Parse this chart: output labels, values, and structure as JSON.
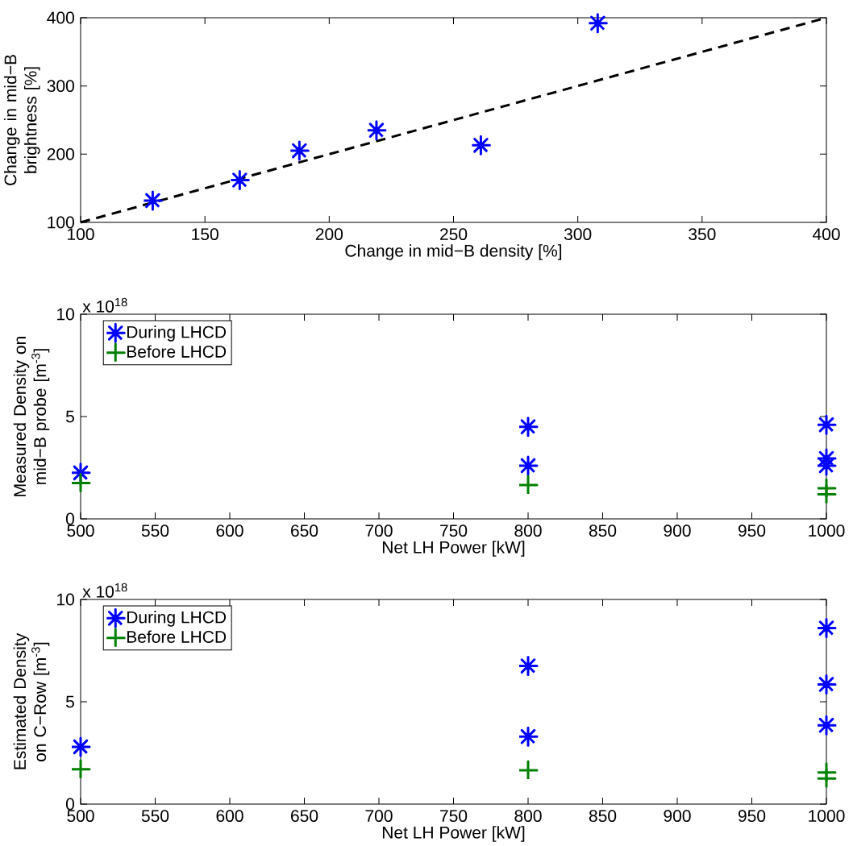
{
  "chart_data": [
    {
      "type": "scatter",
      "xlabel": "Change in mid−B density [%]",
      "ylabel": "Change in mid−B brightness [%]",
      "xlim": [
        100,
        400
      ],
      "ylim": [
        100,
        400
      ],
      "xticks": [
        100,
        150,
        200,
        250,
        300,
        350,
        400
      ],
      "yticks": [
        100,
        200,
        300,
        400
      ],
      "series": [
        {
          "type": "scatter",
          "marker": "cross",
          "color": "#0000ff",
          "x": [
            129,
            164,
            188,
            219,
            261,
            308
          ],
          "values": [
            132,
            162,
            205,
            235,
            213,
            392
          ]
        },
        {
          "type": "line",
          "line_style": "dashed",
          "color": "#000000",
          "x": [
            100,
            400
          ],
          "values": [
            100,
            400
          ]
        }
      ]
    },
    {
      "type": "scatter",
      "xlabel": "Net LH Power [kW]",
      "ylabel": "Measured Density on mid−B probe [m$^{-3}$]",
      "annotations": [
        "x 10$^{18}$"
      ],
      "xlim": [
        500,
        1000
      ],
      "ylim": [
        0,
        10
      ],
      "xticks": [
        500,
        550,
        600,
        650,
        700,
        750,
        800,
        850,
        900,
        950,
        1000
      ],
      "yticks": [
        0,
        5,
        10
      ],
      "legend": "top left",
      "series": [
        {
          "name": "During LHCD",
          "marker": "cross",
          "color": "#0000ff",
          "x": [
            500,
            800,
            800,
            1000,
            1000,
            1000
          ],
          "values": [
            2.25,
            4.5,
            2.6,
            4.6,
            2.95,
            2.6
          ]
        },
        {
          "name": "Before LHCD",
          "marker": "cross",
          "color": "#008000",
          "x": [
            500,
            800,
            1000,
            1000
          ],
          "values": [
            1.75,
            1.65,
            1.5,
            1.2
          ]
        }
      ]
    },
    {
      "type": "scatter",
      "xlabel": "Net LH Power [kW]",
      "ylabel": "Estimated Density on C−Row [m$^{-3}$]",
      "annotations": [
        "x 10$^{18}$"
      ],
      "xlim": [
        500,
        1000
      ],
      "ylim": [
        0,
        10
      ],
      "xticks": [
        500,
        550,
        600,
        650,
        700,
        750,
        800,
        850,
        900,
        950,
        1000
      ],
      "yticks": [
        0,
        5,
        10
      ],
      "legend": "top left",
      "series": [
        {
          "name": "During LHCD",
          "marker": "cross",
          "color": "#0000ff",
          "x": [
            500,
            800,
            800,
            1000,
            1000,
            1000
          ],
          "values": [
            2.8,
            6.75,
            3.3,
            8.6,
            5.85,
            3.85
          ]
        },
        {
          "name": "Before LHCD",
          "marker": "cross",
          "color": "#008000",
          "x": [
            500,
            800,
            1000,
            1000
          ],
          "values": [
            1.7,
            1.65,
            1.55,
            1.25
          ]
        }
      ]
    }
  ]
}
